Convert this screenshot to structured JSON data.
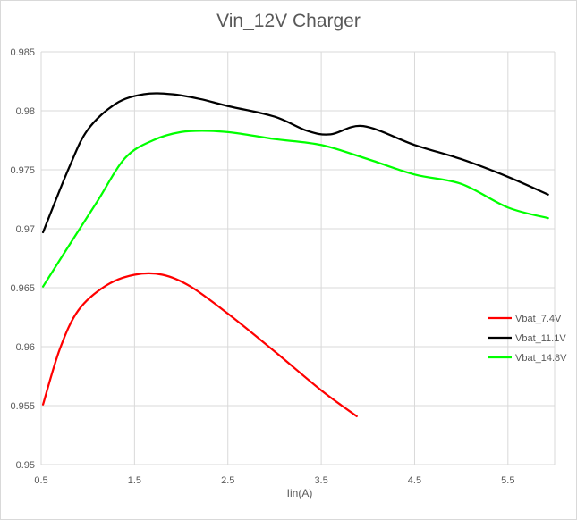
{
  "chart_data": {
    "type": "line",
    "title": "Vin_12V Charger",
    "xlabel": "Iin(A)",
    "ylabel": "",
    "xlim": [
      0.5,
      6.0
    ],
    "ylim": [
      0.95,
      0.985
    ],
    "xticks": [
      "0.5",
      "1.5",
      "2.5",
      "3.5",
      "4.5",
      "5.5"
    ],
    "yticks": [
      "0.95",
      "0.955",
      "0.96",
      "0.965",
      "0.97",
      "0.975",
      "0.98",
      "0.985"
    ],
    "grid": "vertical and horizontal",
    "legend_position": "right",
    "series": [
      {
        "name": "Vbat_7.4V",
        "color": "#ff0000",
        "x": [
          0.52,
          0.7,
          0.9,
          1.2,
          1.5,
          1.8,
          2.1,
          2.5,
          3.0,
          3.5,
          3.88
        ],
        "y": [
          0.9551,
          0.9598,
          0.9631,
          0.9652,
          0.9661,
          0.9661,
          0.9651,
          0.9628,
          0.9596,
          0.9563,
          0.9541
        ]
      },
      {
        "name": "Vbat_11.1V",
        "color": "#000000",
        "x": [
          0.52,
          0.8,
          1.0,
          1.3,
          1.6,
          1.9,
          2.2,
          2.5,
          3.0,
          3.35,
          3.6,
          3.95,
          4.5,
          5.0,
          5.5,
          5.93
        ],
        "y": [
          0.9697,
          0.9752,
          0.9784,
          0.9806,
          0.9814,
          0.9814,
          0.981,
          0.9804,
          0.9795,
          0.9783,
          0.978,
          0.9787,
          0.9771,
          0.9759,
          0.9744,
          0.9729
        ]
      },
      {
        "name": "Vbat_14.8V",
        "color": "#00ff00",
        "x": [
          0.52,
          0.8,
          1.1,
          1.4,
          1.7,
          2.0,
          2.3,
          2.6,
          3.0,
          3.5,
          4.0,
          4.5,
          5.0,
          5.5,
          5.93
        ],
        "y": [
          0.9651,
          0.9686,
          0.9723,
          0.976,
          0.9775,
          0.9782,
          0.9783,
          0.9781,
          0.9776,
          0.9771,
          0.9759,
          0.9746,
          0.9738,
          0.9718,
          0.9709
        ]
      }
    ]
  }
}
